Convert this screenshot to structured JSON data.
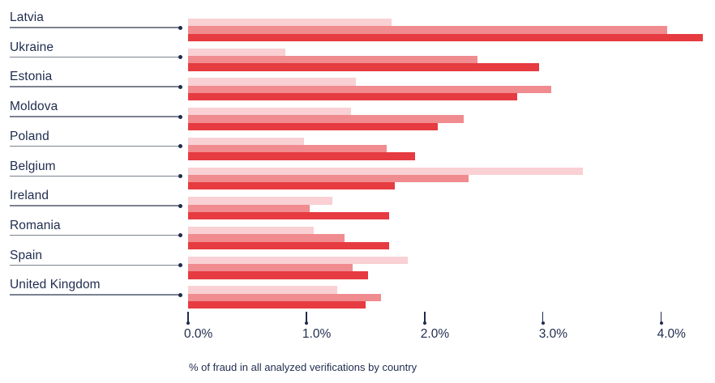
{
  "chart_data": {
    "type": "bar",
    "orientation": "horizontal",
    "title": "",
    "caption": "% of fraud in all analyzed verifications by country",
    "categories": [
      "Latvia",
      "Ukraine",
      "Estonia",
      "Moldova",
      "Poland",
      "Belgium",
      "Ireland",
      "Romania",
      "Spain",
      "United Kingdom"
    ],
    "series": [
      {
        "name": "light-pink-series",
        "color": "#f9d0d3",
        "values": [
          1.72,
          0.82,
          1.42,
          1.38,
          0.98,
          3.34,
          1.22,
          1.06,
          1.86,
          1.26
        ]
      },
      {
        "name": "medium-pink-series",
        "color": "#f08b8f",
        "values": [
          4.05,
          2.45,
          3.07,
          2.33,
          1.68,
          2.37,
          1.03,
          1.32,
          1.39,
          1.63
        ]
      },
      {
        "name": "dark-red-series",
        "color": "#e63b40",
        "values": [
          4.35,
          2.97,
          2.78,
          2.11,
          1.92,
          1.75,
          1.7,
          1.7,
          1.52,
          1.5
        ]
      }
    ],
    "x_ticks": [
      "0.0%",
      "1.0%",
      "2.0%",
      "3.0%",
      "4.0%"
    ],
    "x_tick_values": [
      0.0,
      1.0,
      2.0,
      3.0,
      4.0
    ],
    "x_range": [
      0,
      4.45
    ],
    "grid": "off",
    "legend": "none",
    "colors": {
      "text_navy": "#1f2c4e",
      "leader_line_gray": "#7b8290"
    }
  }
}
